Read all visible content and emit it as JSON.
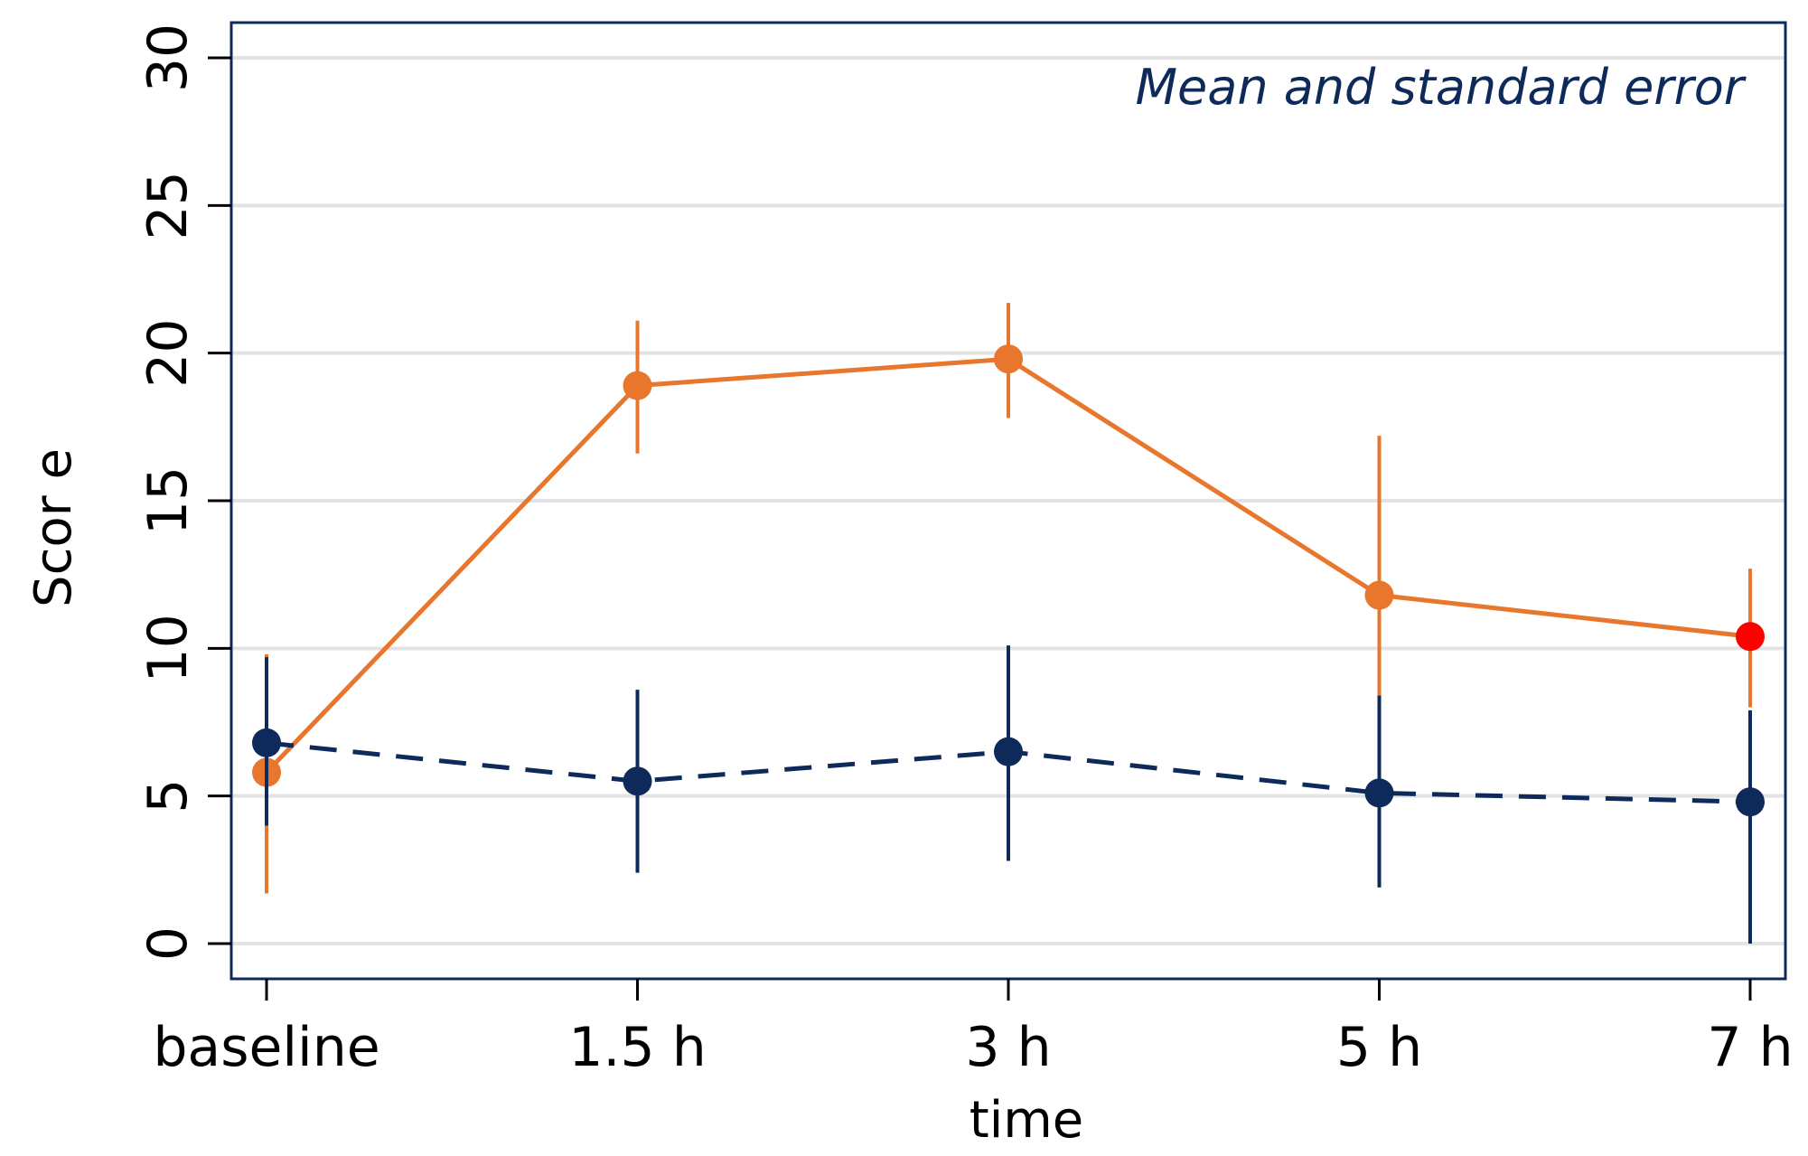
{
  "chart_data": {
    "type": "line",
    "annotation": "Mean and standard error",
    "xlabel": "time",
    "ylabel": "Scor e",
    "categories": [
      "baseline",
      "1.5 h",
      "3 h",
      "5 h",
      "7 h"
    ],
    "ylim": [
      0,
      31
    ],
    "yticks": [
      0,
      5,
      10,
      15,
      20,
      25,
      30
    ],
    "grid": true,
    "series": [
      {
        "color": "#e8762c",
        "line_style": "solid",
        "values": [
          5.8,
          18.9,
          19.8,
          11.8,
          10.4
        ],
        "upper": [
          9.8,
          21.1,
          21.7,
          17.2,
          12.7
        ],
        "lower": [
          1.7,
          16.6,
          17.8,
          6.4,
          8.0
        ],
        "point_colors": [
          "#e8762c",
          "#e8762c",
          "#e8762c",
          "#e8762c",
          "#ff0000"
        ]
      },
      {
        "color": "#0d2a5a",
        "line_style": "dashed",
        "values": [
          6.8,
          5.5,
          6.5,
          5.1,
          4.8
        ],
        "upper": [
          9.7,
          8.6,
          10.1,
          8.4,
          7.9
        ],
        "lower": [
          4.0,
          2.4,
          2.8,
          1.9,
          0.0
        ],
        "point_colors": [
          "#0d2a5a",
          "#0d2a5a",
          "#0d2a5a",
          "#0d2a5a",
          "#0d2a5a"
        ]
      }
    ]
  }
}
